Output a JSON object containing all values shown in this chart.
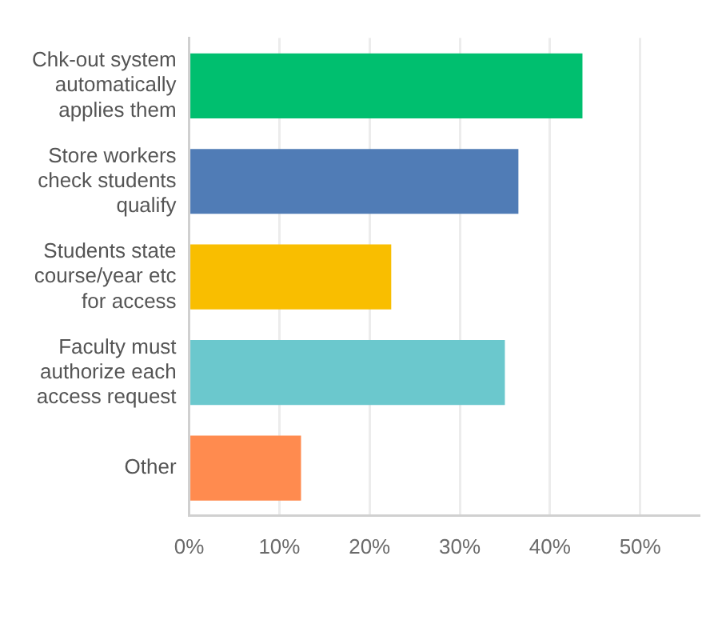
{
  "chart_data": {
    "type": "bar",
    "orientation": "horizontal",
    "categories": [
      "Chk-out system automatically applies them",
      "Store workers check students qualify",
      "Students state course/year etc for access",
      "Faculty must authorize each access request",
      "Other"
    ],
    "values": [
      43.6,
      36.5,
      22.4,
      35.0,
      12.4
    ],
    "colors": [
      "#00bf6f",
      "#507cb6",
      "#f9be00",
      "#6bc8cd",
      "#ff8b4f"
    ],
    "xlim": [
      0,
      56.5
    ],
    "xticks": [
      {
        "value": 0,
        "label": "0%"
      },
      {
        "value": 10,
        "label": "10%"
      },
      {
        "value": 20,
        "label": "20%"
      },
      {
        "value": 30,
        "label": "30%"
      },
      {
        "value": 40,
        "label": "40%"
      },
      {
        "value": 50,
        "label": "50%"
      }
    ],
    "grid": "x",
    "legend": false
  }
}
